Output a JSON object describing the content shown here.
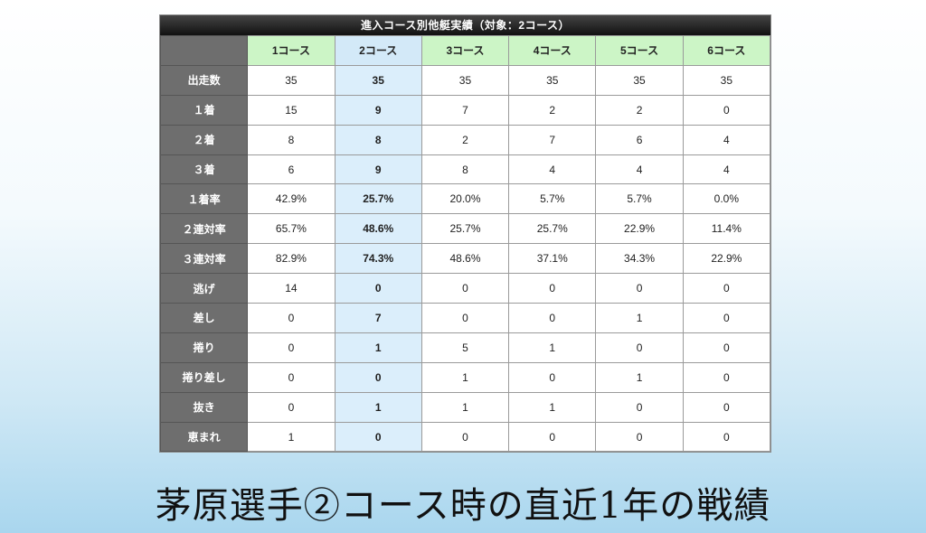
{
  "table": {
    "title": "進入コース別他艇実績（対象：2コース）",
    "columns": [
      "1コース",
      "2コース",
      "3コース",
      "4コース",
      "5コース",
      "6コース"
    ],
    "highlight_column_index": 1,
    "rows": [
      {
        "label": "出走数",
        "values": [
          "35",
          "35",
          "35",
          "35",
          "35",
          "35"
        ]
      },
      {
        "label": "１着",
        "values": [
          "15",
          "9",
          "7",
          "2",
          "2",
          "0"
        ]
      },
      {
        "label": "２着",
        "values": [
          "8",
          "8",
          "2",
          "7",
          "6",
          "4"
        ]
      },
      {
        "label": "３着",
        "values": [
          "6",
          "9",
          "8",
          "4",
          "4",
          "4"
        ]
      },
      {
        "label": "１着率",
        "values": [
          "42.9%",
          "25.7%",
          "20.0%",
          "5.7%",
          "5.7%",
          "0.0%"
        ]
      },
      {
        "label": "２連対率",
        "values": [
          "65.7%",
          "48.6%",
          "25.7%",
          "25.7%",
          "22.9%",
          "11.4%"
        ]
      },
      {
        "label": "３連対率",
        "values": [
          "82.9%",
          "74.3%",
          "48.6%",
          "37.1%",
          "34.3%",
          "22.9%"
        ]
      },
      {
        "label": "逃げ",
        "values": [
          "14",
          "0",
          "0",
          "0",
          "0",
          "0"
        ]
      },
      {
        "label": "差し",
        "values": [
          "0",
          "7",
          "0",
          "0",
          "1",
          "0"
        ]
      },
      {
        "label": "捲り",
        "values": [
          "0",
          "1",
          "5",
          "1",
          "0",
          "0"
        ]
      },
      {
        "label": "捲り差し",
        "values": [
          "0",
          "0",
          "1",
          "0",
          "1",
          "0"
        ]
      },
      {
        "label": "抜き",
        "values": [
          "0",
          "1",
          "1",
          "1",
          "0",
          "0"
        ]
      },
      {
        "label": "恵まれ",
        "values": [
          "1",
          "0",
          "0",
          "0",
          "0",
          "0"
        ]
      }
    ]
  },
  "caption": "茅原選手②コース時の直近1年の戦績",
  "colors": {
    "header_green": "#ccf5c6",
    "highlight_blue": "#dbeefb",
    "row_header_gray": "#6e6e6e",
    "title_bar": "#1a1a1a"
  }
}
